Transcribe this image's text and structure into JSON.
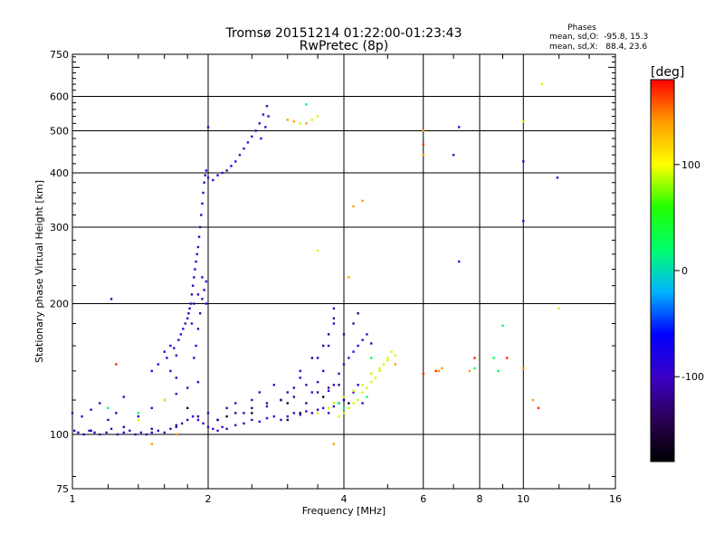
{
  "title_line1": "Tromsø 20151214 01:22:00-01:23:43",
  "title_line2": "RwPretec (8p)",
  "stats": {
    "heading": "Phases",
    "line_o": "mean, sd,O:  -95.8, 15.3",
    "line_x": "mean, sd,X:   88.4, 23.6"
  },
  "chart_data": {
    "type": "scatter",
    "title": "Tromsø 20151214 01:22:00-01:23:43",
    "subtitle": "RwPretec (8p)",
    "xlabel": "Frequency [MHz]",
    "ylabel": "Stationary phase Virtual Height [km]",
    "xscale": "log",
    "yscale": "log",
    "xlim": [
      1,
      16
    ],
    "ylim": [
      75,
      750
    ],
    "x_ticks": [
      1,
      2,
      4,
      6,
      8,
      10,
      16
    ],
    "x_tick_labels": [
      "1",
      "2",
      "4",
      "6",
      "8",
      "10",
      "16"
    ],
    "x_grid": [
      2,
      4,
      6,
      8,
      10
    ],
    "y_ticks": [
      75,
      100,
      200,
      300,
      400,
      500,
      600,
      750
    ],
    "y_tick_labels": [
      "75",
      "100",
      "200",
      "300",
      "400",
      "500",
      "600",
      "750"
    ],
    "y_grid": [
      100,
      200,
      300,
      400,
      500,
      600
    ],
    "grid": true,
    "colorbar": {
      "label": "[deg]",
      "range": [
        -180,
        180
      ],
      "ticks": [
        100,
        0,
        -100
      ],
      "tick_labels": [
        "100",
        "0",
        "-100"
      ],
      "colors": [
        "#000000",
        "#2a0055",
        "#3a00c8",
        "#0000ff",
        "#00b4ff",
        "#00ff6a",
        "#22ff00",
        "#ffff00",
        "#ff9d00",
        "#ff0000"
      ]
    },
    "series": [
      {
        "color_value": -100,
        "points": [
          [
            1.0,
            112
          ],
          [
            1.05,
            110
          ],
          [
            1.1,
            114
          ],
          [
            1.15,
            118
          ],
          [
            1.2,
            108
          ],
          [
            1.25,
            112
          ],
          [
            1.3,
            122
          ],
          [
            1.4,
            110
          ],
          [
            1.5,
            115
          ],
          [
            1.6,
            120
          ],
          [
            1.7,
            124
          ],
          [
            1.8,
            128
          ],
          [
            1.9,
            132
          ],
          [
            2.0,
            112
          ],
          [
            2.1,
            108
          ],
          [
            2.2,
            115
          ],
          [
            2.3,
            118
          ],
          [
            2.4,
            112
          ],
          [
            2.5,
            120
          ],
          [
            2.6,
            125
          ],
          [
            2.7,
            116
          ],
          [
            2.8,
            130
          ],
          [
            2.9,
            120
          ],
          [
            3.0,
            125
          ],
          [
            3.1,
            128
          ],
          [
            3.2,
            135
          ],
          [
            3.3,
            130
          ],
          [
            3.4,
            125
          ],
          [
            3.5,
            132
          ],
          [
            3.6,
            140
          ],
          [
            3.7,
            126
          ],
          [
            3.8,
            130
          ],
          [
            3.9,
            138
          ],
          [
            4.0,
            145
          ],
          [
            4.1,
            150
          ],
          [
            4.2,
            155
          ],
          [
            4.3,
            160
          ],
          [
            4.4,
            165
          ],
          [
            4.5,
            170
          ],
          [
            4.6,
            162
          ],
          [
            3.2,
            140
          ],
          [
            3.5,
            150
          ],
          [
            3.7,
            160
          ],
          [
            3.8,
            180
          ],
          [
            3.8,
            195
          ],
          [
            1.01,
            102
          ],
          [
            1.03,
            101
          ],
          [
            1.06,
            100
          ],
          [
            1.09,
            102
          ],
          [
            1.12,
            101
          ],
          [
            1.15,
            100
          ],
          [
            1.19,
            101
          ],
          [
            1.22,
            103
          ],
          [
            1.26,
            100
          ],
          [
            1.3,
            101
          ],
          [
            1.34,
            102
          ],
          [
            1.38,
            100
          ],
          [
            1.42,
            101
          ],
          [
            1.46,
            100
          ],
          [
            1.5,
            101
          ],
          [
            1.55,
            102
          ],
          [
            1.6,
            101
          ],
          [
            1.65,
            103
          ],
          [
            1.7,
            104
          ],
          [
            1.75,
            106
          ],
          [
            1.8,
            108
          ],
          [
            1.85,
            110
          ],
          [
            1.9,
            108
          ],
          [
            1.95,
            106
          ],
          [
            2.0,
            104
          ],
          [
            2.05,
            103
          ],
          [
            2.1,
            102
          ],
          [
            2.15,
            104
          ],
          [
            2.2,
            103
          ],
          [
            2.3,
            105
          ],
          [
            2.4,
            106
          ],
          [
            2.5,
            108
          ],
          [
            2.6,
            107
          ],
          [
            2.7,
            109
          ],
          [
            2.8,
            110
          ],
          [
            2.9,
            108
          ],
          [
            3.0,
            110
          ],
          [
            3.1,
            112
          ],
          [
            3.2,
            111
          ],
          [
            3.3,
            113
          ],
          [
            3.4,
            112
          ],
          [
            3.5,
            114
          ],
          [
            3.6,
            115
          ],
          [
            3.7,
            112
          ],
          [
            3.8,
            116
          ],
          [
            3.9,
            118
          ],
          [
            4.0,
            120
          ],
          [
            1.6,
            155
          ],
          [
            1.62,
            150
          ],
          [
            1.65,
            160
          ],
          [
            1.68,
            158
          ],
          [
            1.7,
            152
          ],
          [
            1.72,
            165
          ],
          [
            1.74,
            170
          ],
          [
            1.76,
            175
          ],
          [
            1.78,
            180
          ],
          [
            1.8,
            185
          ],
          [
            1.81,
            190
          ],
          [
            1.82,
            195
          ],
          [
            1.83,
            200
          ],
          [
            1.84,
            210
          ],
          [
            1.85,
            220
          ],
          [
            1.86,
            230
          ],
          [
            1.87,
            240
          ],
          [
            1.88,
            250
          ],
          [
            1.89,
            260
          ],
          [
            1.9,
            270
          ],
          [
            1.91,
            285
          ],
          [
            1.92,
            300
          ],
          [
            1.93,
            320
          ],
          [
            1.94,
            340
          ],
          [
            1.95,
            360
          ],
          [
            1.96,
            380
          ],
          [
            1.97,
            395
          ],
          [
            1.98,
            405
          ],
          [
            1.86,
            150
          ],
          [
            1.88,
            160
          ],
          [
            1.9,
            175
          ],
          [
            1.92,
            190
          ],
          [
            1.94,
            205
          ],
          [
            1.96,
            215
          ],
          [
            1.98,
            200
          ],
          [
            1.84,
            180
          ],
          [
            1.86,
            200
          ],
          [
            1.9,
            210
          ],
          [
            1.94,
            230
          ],
          [
            1.98,
            225
          ],
          [
            2.0,
            390
          ],
          [
            2.05,
            385
          ],
          [
            2.1,
            395
          ],
          [
            2.15,
            400
          ],
          [
            2.2,
            405
          ],
          [
            2.25,
            415
          ],
          [
            2.3,
            425
          ],
          [
            2.35,
            440
          ],
          [
            2.4,
            455
          ],
          [
            2.45,
            470
          ],
          [
            2.5,
            485
          ],
          [
            2.55,
            500
          ],
          [
            2.6,
            520
          ],
          [
            2.65,
            545
          ],
          [
            2.7,
            570
          ],
          [
            2.72,
            540
          ],
          [
            2.68,
            510
          ],
          [
            2.62,
            480
          ],
          [
            1.22,
            205
          ],
          [
            2.0,
            510
          ],
          [
            7.2,
            510
          ],
          [
            10.0,
            425
          ],
          [
            11.9,
            390
          ],
          [
            10.0,
            310
          ],
          [
            7.2,
            250
          ],
          [
            7.0,
            440
          ],
          [
            4.0,
            120
          ],
          [
            4.2,
            125
          ],
          [
            4.3,
            130
          ],
          [
            4.4,
            118
          ],
          [
            1.7,
            135
          ],
          [
            1.65,
            140
          ],
          [
            1.55,
            145
          ],
          [
            1.5,
            140
          ]
        ]
      },
      {
        "color_value": -120,
        "points": [
          [
            1.1,
            102
          ],
          [
            1.3,
            104
          ],
          [
            1.5,
            103
          ],
          [
            1.7,
            105
          ],
          [
            1.9,
            110
          ],
          [
            2.1,
            108
          ],
          [
            2.3,
            112
          ],
          [
            2.5,
            115
          ],
          [
            2.7,
            118
          ],
          [
            2.9,
            120
          ],
          [
            3.1,
            122
          ],
          [
            3.3,
            118
          ],
          [
            3.5,
            125
          ],
          [
            3.7,
            128
          ],
          [
            3.9,
            130
          ],
          [
            3.4,
            150
          ],
          [
            3.6,
            160
          ],
          [
            3.7,
            170
          ],
          [
            3.8,
            185
          ],
          [
            4.0,
            170
          ],
          [
            4.2,
            180
          ],
          [
            4.3,
            190
          ]
        ]
      },
      {
        "color_value": 90,
        "points": [
          [
            3.9,
            110
          ],
          [
            4.0,
            112
          ],
          [
            4.1,
            115
          ],
          [
            4.2,
            118
          ],
          [
            4.3,
            120
          ],
          [
            4.4,
            125
          ],
          [
            4.5,
            128
          ],
          [
            4.6,
            132
          ],
          [
            4.7,
            135
          ],
          [
            4.8,
            140
          ],
          [
            4.9,
            145
          ],
          [
            5.0,
            150
          ],
          [
            5.1,
            155
          ],
          [
            5.2,
            152
          ],
          [
            3.8,
            118
          ],
          [
            4.0,
            122
          ],
          [
            4.2,
            126
          ],
          [
            4.4,
            130
          ],
          [
            4.6,
            138
          ],
          [
            4.8,
            142
          ],
          [
            5.0,
            148
          ],
          [
            3.5,
            112
          ],
          [
            3.7,
            115
          ],
          [
            3.2,
            520
          ],
          [
            3.4,
            530
          ],
          [
            3.5,
            540
          ],
          [
            3.5,
            265
          ],
          [
            1.6,
            120
          ],
          [
            1.4,
            108
          ],
          [
            11.0,
            640
          ],
          [
            12.0,
            195
          ],
          [
            10.0,
            525
          ]
        ]
      },
      {
        "color_value": 140,
        "points": [
          [
            3.0,
            530
          ],
          [
            3.1,
            525
          ],
          [
            3.3,
            520
          ],
          [
            4.1,
            230
          ],
          [
            5.2,
            145
          ],
          [
            6.0,
            440
          ],
          [
            6.0,
            500
          ],
          [
            6.5,
            140
          ],
          [
            6.6,
            142
          ],
          [
            7.6,
            140
          ],
          [
            10.0,
            142
          ],
          [
            10.5,
            120
          ],
          [
            1.5,
            95
          ],
          [
            1.7,
            100
          ],
          [
            3.8,
            95
          ],
          [
            4.2,
            335
          ],
          [
            4.4,
            345
          ]
        ]
      },
      {
        "color_value": 170,
        "points": [
          [
            6.0,
            465
          ],
          [
            6.0,
            138
          ],
          [
            7.8,
            150
          ],
          [
            9.2,
            150
          ],
          [
            10.8,
            115
          ],
          [
            6.4,
            140
          ],
          [
            1.25,
            145
          ]
        ]
      },
      {
        "color_value": 20,
        "points": [
          [
            1.2,
            115
          ],
          [
            1.4,
            112
          ],
          [
            3.9,
            118
          ],
          [
            4.0,
            115
          ],
          [
            4.5,
            122
          ],
          [
            4.6,
            150
          ],
          [
            7.8,
            142
          ],
          [
            8.8,
            140
          ],
          [
            3.3,
            575
          ],
          [
            9.0,
            178
          ],
          [
            8.6,
            150
          ]
        ]
      },
      {
        "color_value": -160,
        "points": [
          [
            2.5,
            112
          ],
          [
            3.0,
            118
          ],
          [
            3.6,
            122
          ],
          [
            4.1,
            118
          ],
          [
            1.8,
            115
          ],
          [
            2.2,
            110
          ],
          [
            3.2,
            112
          ],
          [
            3.0,
            108
          ]
        ]
      }
    ]
  }
}
